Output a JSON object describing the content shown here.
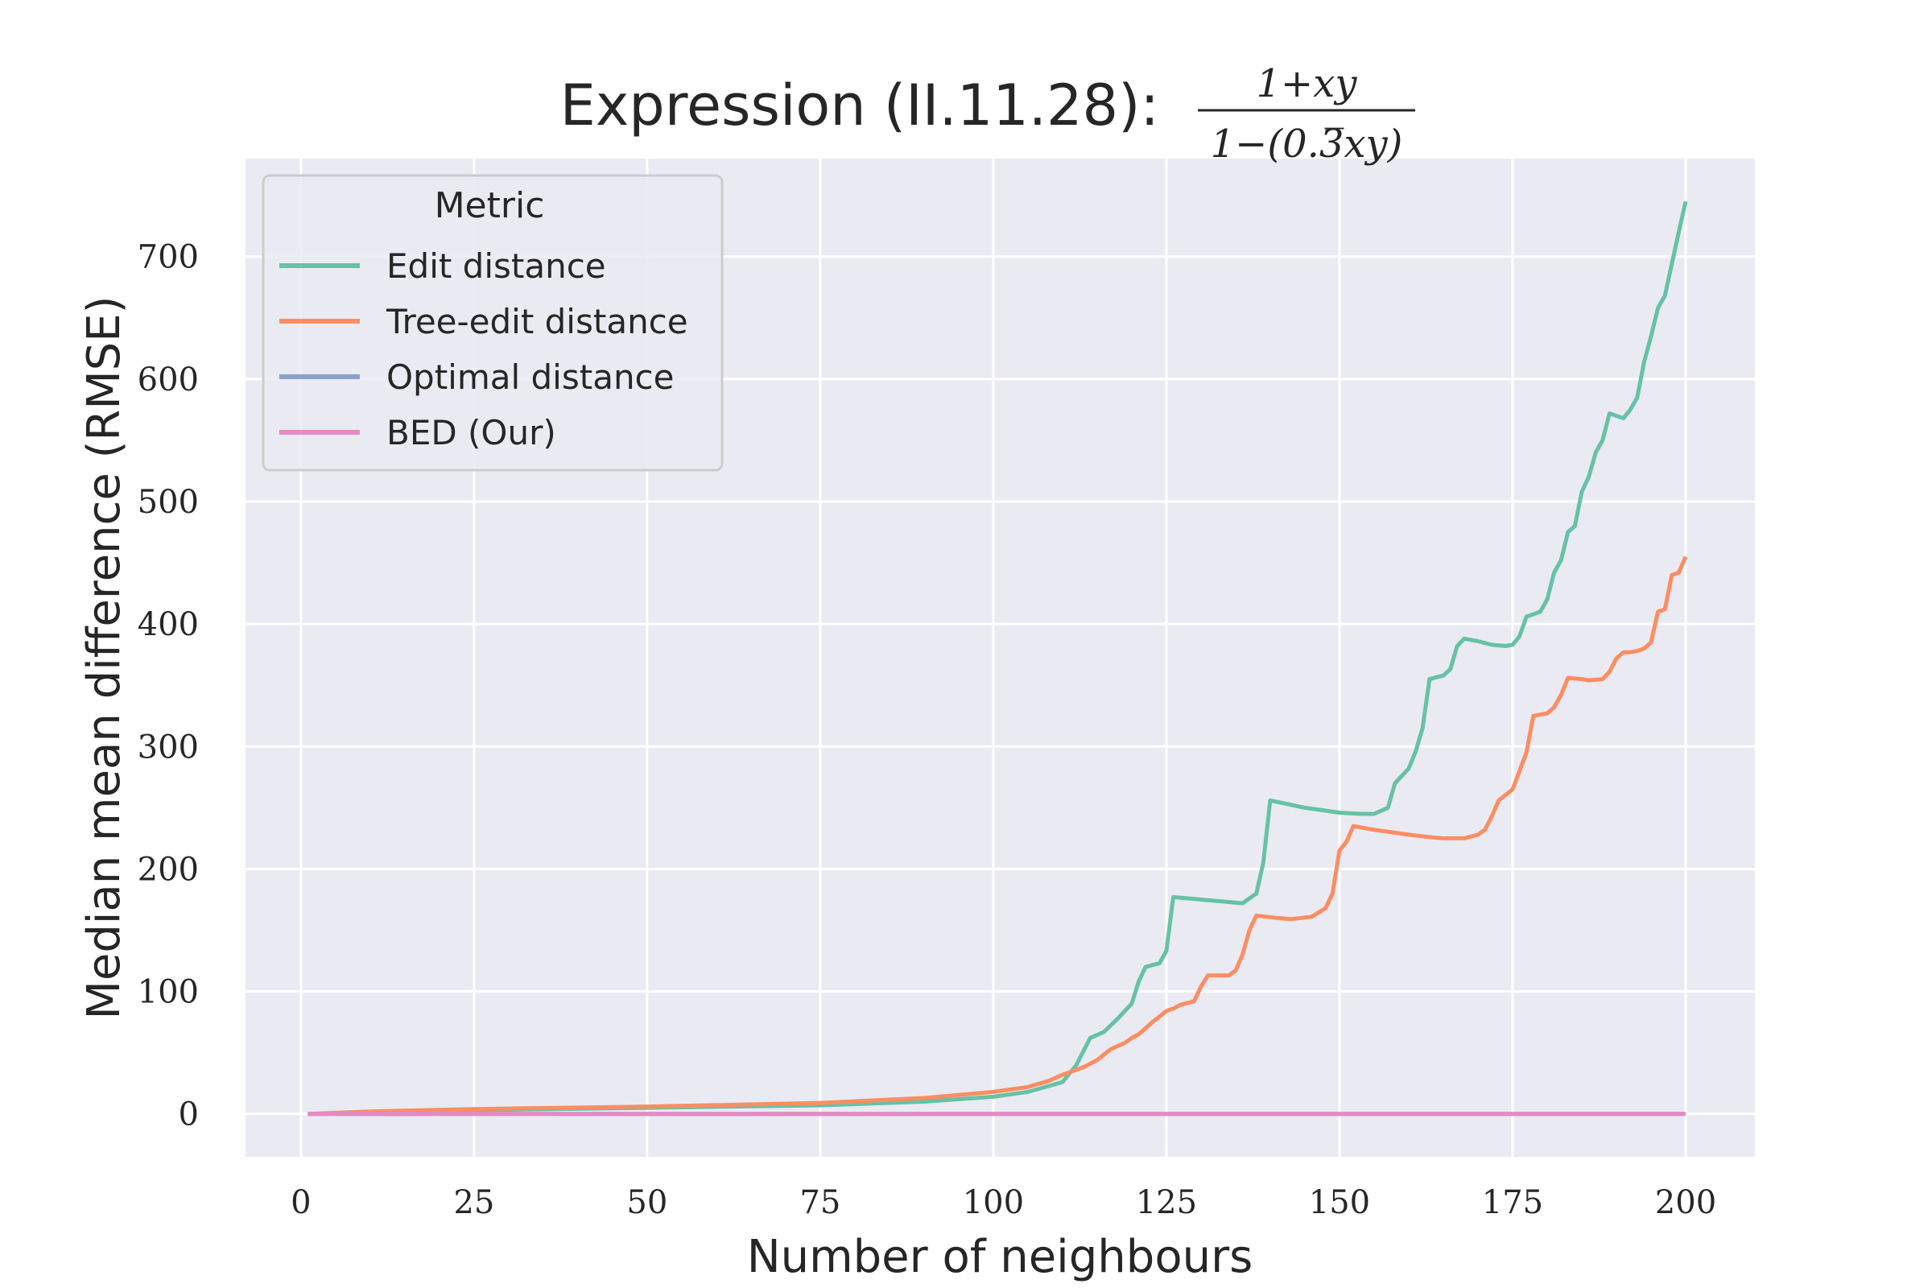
{
  "chart_data": {
    "type": "line",
    "title": "Expression (II.11.28):",
    "title_formula": {
      "numerator": "1+xy",
      "denominator": "1−(0.3̅xy)"
    },
    "xlabel": "Number of neighbours",
    "ylabel": "Median mean difference (RMSE)",
    "xlim": [
      -8,
      210
    ],
    "ylim": [
      -35,
      780
    ],
    "xticks": [
      0,
      25,
      50,
      75,
      100,
      125,
      150,
      175,
      200
    ],
    "yticks": [
      0,
      100,
      200,
      300,
      400,
      500,
      600,
      700
    ],
    "grid": true,
    "legend": {
      "title": "Metric",
      "placement": "top-left"
    },
    "series": [
      {
        "name": "Edit distance",
        "color": "#66c2a5",
        "points": [
          [
            1,
            0
          ],
          [
            10,
            1
          ],
          [
            25,
            3
          ],
          [
            50,
            5
          ],
          [
            75,
            7
          ],
          [
            90,
            10
          ],
          [
            100,
            14
          ],
          [
            105,
            18
          ],
          [
            110,
            26
          ],
          [
            112,
            40
          ],
          [
            114,
            62
          ],
          [
            116,
            67
          ],
          [
            118,
            78
          ],
          [
            120,
            90
          ],
          [
            121,
            108
          ],
          [
            122,
            120
          ],
          [
            124,
            123
          ],
          [
            125,
            133
          ],
          [
            126,
            177
          ],
          [
            130,
            175
          ],
          [
            134,
            173
          ],
          [
            136,
            172
          ],
          [
            138,
            180
          ],
          [
            139,
            205
          ],
          [
            140,
            256
          ],
          [
            145,
            250
          ],
          [
            150,
            246
          ],
          [
            153,
            245
          ],
          [
            155,
            245
          ],
          [
            157,
            250
          ],
          [
            158,
            270
          ],
          [
            160,
            282
          ],
          [
            161,
            296
          ],
          [
            162,
            315
          ],
          [
            163,
            355
          ],
          [
            165,
            358
          ],
          [
            166,
            363
          ],
          [
            167,
            382
          ],
          [
            168,
            388
          ],
          [
            170,
            386
          ],
          [
            172,
            383
          ],
          [
            174,
            382
          ],
          [
            175,
            383
          ],
          [
            176,
            390
          ],
          [
            177,
            406
          ],
          [
            178,
            408
          ],
          [
            179,
            410
          ],
          [
            180,
            420
          ],
          [
            181,
            442
          ],
          [
            182,
            452
          ],
          [
            183,
            475
          ],
          [
            184,
            480
          ],
          [
            185,
            508
          ],
          [
            186,
            520
          ],
          [
            187,
            540
          ],
          [
            188,
            550
          ],
          [
            189,
            572
          ],
          [
            190,
            570
          ],
          [
            191,
            568
          ],
          [
            192,
            575
          ],
          [
            193,
            585
          ],
          [
            194,
            614
          ],
          [
            195,
            635
          ],
          [
            196,
            658
          ],
          [
            197,
            668
          ],
          [
            198,
            694
          ],
          [
            199,
            720
          ],
          [
            200,
            745
          ]
        ]
      },
      {
        "name": "Tree-edit distance",
        "color": "#fc8d62",
        "points": [
          [
            1,
            0
          ],
          [
            10,
            2
          ],
          [
            25,
            4
          ],
          [
            50,
            6
          ],
          [
            75,
            9
          ],
          [
            90,
            13
          ],
          [
            100,
            18
          ],
          [
            105,
            22
          ],
          [
            108,
            27
          ],
          [
            110,
            32
          ],
          [
            113,
            38
          ],
          [
            115,
            44
          ],
          [
            117,
            53
          ],
          [
            119,
            58
          ],
          [
            120,
            62
          ],
          [
            121,
            65
          ],
          [
            123,
            75
          ],
          [
            125,
            84
          ],
          [
            126,
            86
          ],
          [
            127,
            89
          ],
          [
            129,
            92
          ],
          [
            130,
            104
          ],
          [
            131,
            113
          ],
          [
            134,
            113
          ],
          [
            135,
            117
          ],
          [
            136,
            130
          ],
          [
            137,
            150
          ],
          [
            138,
            162
          ],
          [
            141,
            160
          ],
          [
            143,
            159
          ],
          [
            146,
            161
          ],
          [
            148,
            168
          ],
          [
            149,
            180
          ],
          [
            150,
            215
          ],
          [
            151,
            222
          ],
          [
            152,
            235
          ],
          [
            155,
            232
          ],
          [
            160,
            228
          ],
          [
            163,
            226
          ],
          [
            165,
            225
          ],
          [
            168,
            225
          ],
          [
            170,
            228
          ],
          [
            171,
            232
          ],
          [
            172,
            243
          ],
          [
            173,
            256
          ],
          [
            175,
            265
          ],
          [
            176,
            280
          ],
          [
            177,
            295
          ],
          [
            178,
            325
          ],
          [
            180,
            327
          ],
          [
            181,
            332
          ],
          [
            182,
            342
          ],
          [
            183,
            356
          ],
          [
            185,
            355
          ],
          [
            186,
            354
          ],
          [
            188,
            355
          ],
          [
            189,
            361
          ],
          [
            190,
            372
          ],
          [
            191,
            377
          ],
          [
            192,
            377
          ],
          [
            193,
            378
          ],
          [
            194,
            380
          ],
          [
            195,
            385
          ],
          [
            196,
            410
          ],
          [
            197,
            412
          ],
          [
            198,
            440
          ],
          [
            199,
            442
          ],
          [
            200,
            455
          ]
        ]
      },
      {
        "name": "Optimal distance",
        "color": "#8da0cb",
        "points": [
          [
            1,
            0
          ],
          [
            200,
            0
          ]
        ]
      },
      {
        "name": "BED (Our)",
        "color": "#e78ac3",
        "points": [
          [
            1,
            0
          ],
          [
            200,
            0
          ]
        ]
      }
    ]
  }
}
